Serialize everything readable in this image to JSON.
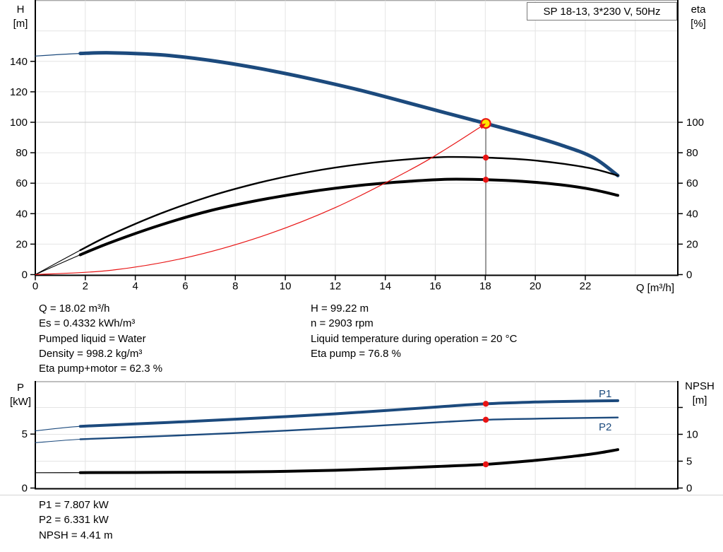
{
  "title_box": "SP 18-13, 3*230 V, 50Hz",
  "labels": {
    "h_axis": "H",
    "h_unit": "[m]",
    "eta_axis": "eta",
    "eta_unit": "[%]",
    "q_axis": "Q [m³/h]",
    "p_axis": "P",
    "p_unit": "[kW]",
    "npsh_axis": "NPSH",
    "npsh_unit": "[m]",
    "p1": "P1",
    "p2": "P2"
  },
  "info_top_left": [
    "Q = 18.02 m³/h",
    "Es = 0.4332 kWh/m³",
    "Pumped liquid = Water",
    "Density = 998.2 kg/m³",
    "Eta pump+motor = 62.3 %"
  ],
  "info_top_right": [
    "H = 99.22 m",
    "n = 2903 rpm",
    "Liquid temperature during operation = 20 °C",
    "Eta pump = 76.8 %"
  ],
  "info_bottom": [
    "P1 = 7.807 kW",
    "P2 = 6.331 kW",
    "NPSH = 4.41 m"
  ],
  "colors": {
    "curve_blue": "#1c4a7d",
    "curve_black": "#000000",
    "red": "#e81414",
    "yellow": "#ffe600",
    "grid": "#e4e4e4",
    "grid_dark": "#c9c9c9",
    "frame_gray": "#a8a8a8",
    "duty_line": "#9a9a9a",
    "faint_line": "#e0e0e0"
  },
  "chart_data": [
    {
      "type": "line",
      "name": "head-efficiency",
      "title": "SP 18-13, 3*230 V, 50Hz",
      "xlabel": "Q [m³/h]",
      "x_range": [
        0,
        25.7
      ],
      "x_ticks": [
        0,
        2,
        4,
        6,
        8,
        10,
        12,
        14,
        16,
        18,
        20,
        22
      ],
      "grid_x": [
        2,
        4,
        6,
        8,
        10,
        12,
        14,
        16,
        18,
        20,
        22,
        24
      ],
      "y_left": {
        "label": "H [m]",
        "range": [
          0,
          180
        ],
        "ticks": [
          0,
          20,
          40,
          60,
          80,
          100,
          120,
          140
        ],
        "grid": [
          20,
          40,
          60,
          80,
          100,
          120,
          140,
          160
        ]
      },
      "y_right": {
        "label": "eta [%]",
        "range": [
          0,
          180
        ],
        "ticks": [
          0,
          20,
          40,
          60,
          80,
          100
        ]
      },
      "duty_line_x": 18.02,
      "series": [
        {
          "name": "head-curve",
          "axis": "left",
          "color": "curve_blue",
          "width": 5,
          "thin": 1.2,
          "thin_until": 1.8,
          "points": [
            [
              0,
              143.5
            ],
            [
              1.8,
              145.2
            ],
            [
              3,
              145.6
            ],
            [
              5,
              144.3
            ],
            [
              7,
              140.6
            ],
            [
              9,
              135.2
            ],
            [
              11,
              128.6
            ],
            [
              13,
              121
            ],
            [
              15,
              112.4
            ],
            [
              16.5,
              105.8
            ],
            [
              18.02,
              99.22
            ],
            [
              19.5,
              92.6
            ],
            [
              21,
              85.2
            ],
            [
              22.3,
              77
            ],
            [
              23.3,
              65
            ]
          ]
        },
        {
          "name": "eta-pump-curve",
          "axis": "right",
          "color": "curve_black",
          "width": 2.4,
          "thin": 1.1,
          "thin_until": 1.8,
          "points": [
            [
              0,
              0
            ],
            [
              1.8,
              16
            ],
            [
              3,
              26
            ],
            [
              5,
              40
            ],
            [
              7,
              51.5
            ],
            [
              9,
              60.5
            ],
            [
              11,
              67.5
            ],
            [
              13,
              72.5
            ],
            [
              15,
              75.8
            ],
            [
              16.5,
              77.2
            ],
            [
              18.02,
              76.8
            ],
            [
              19.5,
              75.6
            ],
            [
              21,
              73
            ],
            [
              22.3,
              69.5
            ],
            [
              23.3,
              65
            ]
          ]
        },
        {
          "name": "eta-pump-motor-curve",
          "axis": "right",
          "color": "curve_black",
          "width": 4,
          "thin": 1.1,
          "thin_until": 1.8,
          "points": [
            [
              0,
              0
            ],
            [
              1.8,
              13
            ],
            [
              3,
              21
            ],
            [
              5,
              32.5
            ],
            [
              7,
              42
            ],
            [
              9,
              49
            ],
            [
              11,
              54.5
            ],
            [
              13,
              58.6
            ],
            [
              15,
              61.3
            ],
            [
              16.5,
              62.6
            ],
            [
              18.02,
              62.3
            ],
            [
              19.5,
              61.2
            ],
            [
              21,
              59
            ],
            [
              22.3,
              55.8
            ],
            [
              23.3,
              52
            ]
          ]
        },
        {
          "name": "system-curve",
          "axis": "left",
          "color": "red",
          "width": 1.2,
          "arrow_end": true,
          "points": [
            [
              0,
              0
            ],
            [
              3,
              2.8
            ],
            [
              6,
              11
            ],
            [
              9,
              24.8
            ],
            [
              12,
              44
            ],
            [
              15,
              68.8
            ],
            [
              16.5,
              83.2
            ],
            [
              18.02,
              99.22
            ]
          ]
        }
      ],
      "markers": [
        {
          "x": 18.02,
          "y": 99.22,
          "axis": "left",
          "style": "duty",
          "name": "duty-point"
        },
        {
          "x": 18.02,
          "y": 76.8,
          "axis": "right",
          "style": "red",
          "name": "eta-pump-point"
        },
        {
          "x": 18.02,
          "y": 62.3,
          "axis": "right",
          "style": "red",
          "name": "eta-pump-motor-point"
        }
      ]
    },
    {
      "type": "line",
      "name": "power-npsh",
      "x_range": [
        0,
        25.7
      ],
      "x_ticks": [],
      "grid_x": [
        2,
        4,
        6,
        8,
        10,
        12,
        14,
        16,
        18,
        20,
        22,
        24
      ],
      "y_left": {
        "label": "P [kW]",
        "range": [
          0,
          9.86
        ],
        "ticks": [
          0,
          5
        ],
        "grid": []
      },
      "y_right": {
        "label": "NPSH [m]",
        "range": [
          0,
          19.8
        ],
        "ticks": [
          0,
          5,
          10
        ],
        "tick_marks": [
          0,
          5,
          10,
          15
        ],
        "grid": [
          5,
          10,
          15
        ]
      },
      "series": [
        {
          "name": "p1-curve",
          "axis": "left",
          "color": "curve_blue",
          "width": 4,
          "thin": 1.1,
          "thin_until": 1.8,
          "points": [
            [
              0,
              5.3
            ],
            [
              1.8,
              5.72
            ],
            [
              4,
              5.95
            ],
            [
              6,
              6.15
            ],
            [
              8,
              6.38
            ],
            [
              10,
              6.62
            ],
            [
              12,
              6.88
            ],
            [
              14,
              7.18
            ],
            [
              16,
              7.5
            ],
            [
              18.02,
              7.807
            ],
            [
              20,
              7.97
            ],
            [
              22,
              8.06
            ],
            [
              23.3,
              8.1
            ]
          ]
        },
        {
          "name": "p2-curve",
          "axis": "left",
          "color": "curve_blue",
          "width": 2.4,
          "thin": 1.1,
          "thin_until": 1.8,
          "points": [
            [
              0,
              4.2
            ],
            [
              1.8,
              4.52
            ],
            [
              4,
              4.72
            ],
            [
              6,
              4.9
            ],
            [
              8,
              5.1
            ],
            [
              10,
              5.32
            ],
            [
              12,
              5.56
            ],
            [
              14,
              5.82
            ],
            [
              16,
              6.08
            ],
            [
              18.02,
              6.331
            ],
            [
              20,
              6.43
            ],
            [
              22,
              6.5
            ],
            [
              23.3,
              6.54
            ]
          ]
        },
        {
          "name": "npsh-curve",
          "axis": "right",
          "color": "curve_black",
          "width": 4,
          "thin": 1.2,
          "thin_until": 1.8,
          "points": [
            [
              0,
              2.85
            ],
            [
              1.8,
              2.87
            ],
            [
              4,
              2.9
            ],
            [
              8,
              3.0
            ],
            [
              10,
              3.1
            ],
            [
              12,
              3.3
            ],
            [
              14,
              3.62
            ],
            [
              16,
              4.0
            ],
            [
              18.02,
              4.41
            ],
            [
              20,
              5.15
            ],
            [
              21.5,
              5.9
            ],
            [
              22.5,
              6.5
            ],
            [
              23.3,
              7.15
            ]
          ]
        }
      ],
      "markers": [
        {
          "x": 18.02,
          "y": 7.807,
          "axis": "left",
          "style": "red",
          "name": "p1-point"
        },
        {
          "x": 18.02,
          "y": 6.331,
          "axis": "left",
          "style": "red",
          "name": "p2-point"
        },
        {
          "x": 18.02,
          "y": 4.41,
          "axis": "right",
          "style": "red",
          "name": "npsh-point"
        }
      ]
    }
  ]
}
